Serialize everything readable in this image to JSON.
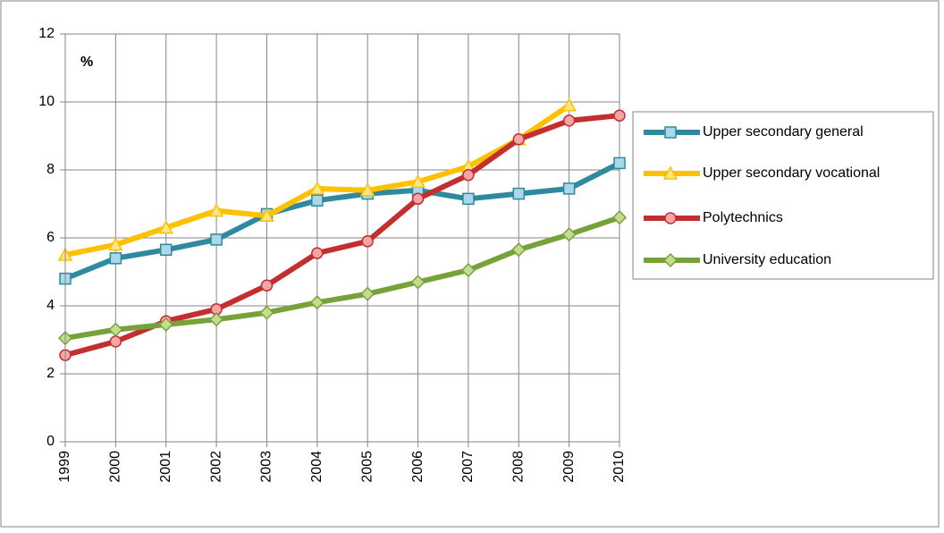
{
  "chart_data": {
    "type": "line",
    "y_label": "%",
    "categories": [
      "1999",
      "2000",
      "2001",
      "2002",
      "2003",
      "2004",
      "2005",
      "2006",
      "2007",
      "2008",
      "2009",
      "2010"
    ],
    "series": [
      {
        "name": "Upper secondary general",
        "color": "#2f8aa0",
        "marker": "square",
        "marker_fill": "#a9d8ea",
        "values": [
          4.8,
          5.4,
          5.65,
          5.95,
          6.7,
          7.1,
          7.3,
          7.4,
          7.15,
          7.3,
          7.45,
          8.2
        ]
      },
      {
        "name": "Upper secondary vocational",
        "color": "#ffc000",
        "marker": "triangle",
        "marker_fill": "#ffe58a",
        "values": [
          5.5,
          5.8,
          6.3,
          6.8,
          6.65,
          7.45,
          7.4,
          7.65,
          8.1,
          8.9,
          9.9,
          null
        ]
      },
      {
        "name": "Polytechnics",
        "color": "#c32f2f",
        "marker": "circle",
        "marker_fill": "#f4a6a6",
        "values": [
          2.55,
          2.95,
          3.55,
          3.9,
          4.6,
          5.55,
          5.9,
          7.15,
          7.85,
          8.9,
          9.45,
          9.6
        ]
      },
      {
        "name": "University education",
        "color": "#77a23a",
        "marker": "diamond",
        "marker_fill": "#c3dc8e",
        "values": [
          3.05,
          3.3,
          3.45,
          3.6,
          3.8,
          4.1,
          4.35,
          4.7,
          5.05,
          5.65,
          6.1,
          6.6
        ]
      }
    ],
    "ylim": [
      0,
      12
    ],
    "yticks": [
      0,
      2,
      4,
      6,
      8,
      10,
      12
    ],
    "grid": true,
    "legend": "right"
  }
}
